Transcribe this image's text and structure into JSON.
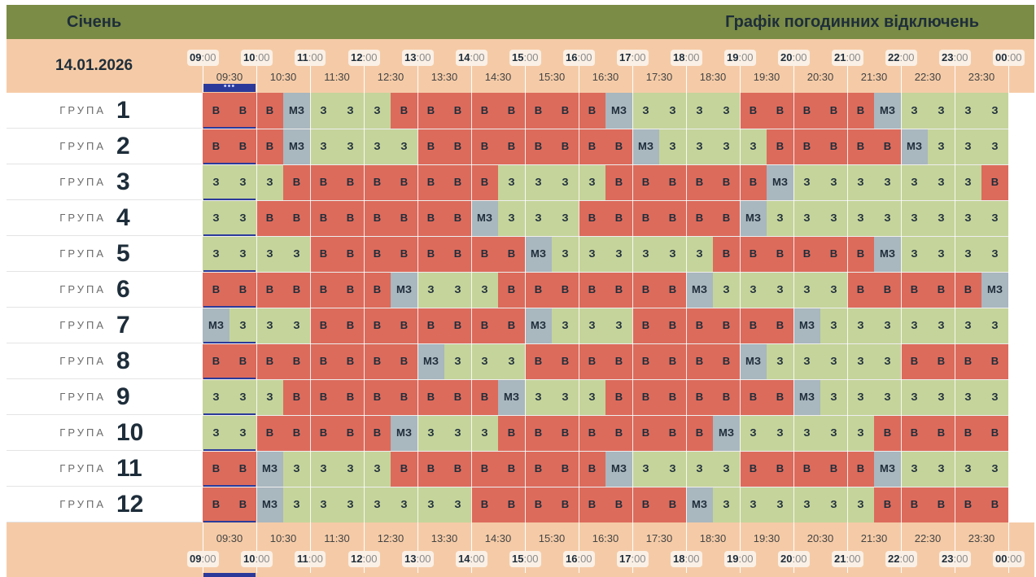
{
  "header": {
    "month": "Січень",
    "title": "Графік погодинних відключень",
    "date": "14.01.2026"
  },
  "hours": [
    {
      "h": "09",
      "m": ":00"
    },
    {
      "h": "10",
      "m": ":00"
    },
    {
      "h": "11",
      "m": ":00"
    },
    {
      "h": "12",
      "m": ":00"
    },
    {
      "h": "13",
      "m": ":00"
    },
    {
      "h": "14",
      "m": ":00"
    },
    {
      "h": "15",
      "m": ":00"
    },
    {
      "h": "16",
      "m": ":00"
    },
    {
      "h": "17",
      "m": ":00"
    },
    {
      "h": "18",
      "m": ":00"
    },
    {
      "h": "19",
      "m": ":00"
    },
    {
      "h": "20",
      "m": ":00"
    },
    {
      "h": "21",
      "m": ":00"
    },
    {
      "h": "22",
      "m": ":00"
    },
    {
      "h": "23",
      "m": ":00"
    },
    {
      "h": "00",
      "m": ":00"
    }
  ],
  "half_hours": [
    "09:30",
    "10:30",
    "11:30",
    "12:30",
    "13:30",
    "14:30",
    "15:30",
    "16:30",
    "17:30",
    "18:30",
    "19:30",
    "20:30",
    "21:30",
    "22:30",
    "23:30"
  ],
  "now_marker": {
    "dots": "•••"
  },
  "groups": [
    {
      "word": "ГРУПА",
      "num": "1",
      "cells": [
        "В",
        "В",
        "В",
        "МЗ",
        "З",
        "З",
        "З",
        "В",
        "В",
        "В",
        "В",
        "В",
        "В",
        "В",
        "В",
        "МЗ",
        "З",
        "З",
        "З",
        "З",
        "В",
        "В",
        "В",
        "В",
        "В",
        "МЗ",
        "З",
        "З",
        "З",
        "З"
      ]
    },
    {
      "word": "ГРУПА",
      "num": "2",
      "cells": [
        "В",
        "В",
        "В",
        "МЗ",
        "З",
        "З",
        "З",
        "З",
        "В",
        "В",
        "В",
        "В",
        "В",
        "В",
        "В",
        "В",
        "МЗ",
        "З",
        "З",
        "З",
        "З",
        "В",
        "В",
        "В",
        "В",
        "В",
        "МЗ",
        "З",
        "З",
        "З"
      ]
    },
    {
      "word": "ГРУПА",
      "num": "3",
      "cells": [
        "З",
        "З",
        "З",
        "В",
        "В",
        "В",
        "В",
        "В",
        "В",
        "В",
        "В",
        "З",
        "З",
        "З",
        "З",
        "В",
        "В",
        "В",
        "В",
        "В",
        "В",
        "МЗ",
        "З",
        "З",
        "З",
        "З",
        "З",
        "З",
        "З",
        "В"
      ]
    },
    {
      "word": "ГРУПА",
      "num": "4",
      "cells": [
        "З",
        "З",
        "В",
        "В",
        "В",
        "В",
        "В",
        "В",
        "В",
        "В",
        "МЗ",
        "З",
        "З",
        "З",
        "В",
        "В",
        "В",
        "В",
        "В",
        "В",
        "МЗ",
        "З",
        "З",
        "З",
        "З",
        "З",
        "З",
        "З",
        "З",
        "З"
      ]
    },
    {
      "word": "ГРУПА",
      "num": "5",
      "cells": [
        "З",
        "З",
        "З",
        "З",
        "В",
        "В",
        "В",
        "В",
        "В",
        "В",
        "В",
        "В",
        "МЗ",
        "З",
        "З",
        "З",
        "З",
        "З",
        "З",
        "В",
        "В",
        "В",
        "В",
        "В",
        "В",
        "МЗ",
        "З",
        "З",
        "З",
        "З"
      ]
    },
    {
      "word": "ГРУПА",
      "num": "6",
      "cells": [
        "В",
        "В",
        "В",
        "В",
        "В",
        "В",
        "В",
        "МЗ",
        "З",
        "З",
        "З",
        "В",
        "В",
        "В",
        "В",
        "В",
        "В",
        "В",
        "МЗ",
        "З",
        "З",
        "З",
        "З",
        "З",
        "В",
        "В",
        "В",
        "В",
        "В",
        "МЗ"
      ]
    },
    {
      "word": "ГРУПА",
      "num": "7",
      "cells": [
        "МЗ",
        "З",
        "З",
        "З",
        "В",
        "В",
        "В",
        "В",
        "В",
        "В",
        "В",
        "В",
        "МЗ",
        "З",
        "З",
        "З",
        "В",
        "В",
        "В",
        "В",
        "В",
        "В",
        "МЗ",
        "З",
        "З",
        "З",
        "З",
        "З",
        "З",
        "З"
      ]
    },
    {
      "word": "ГРУПА",
      "num": "8",
      "cells": [
        "В",
        "В",
        "В",
        "В",
        "В",
        "В",
        "В",
        "В",
        "МЗ",
        "З",
        "З",
        "З",
        "В",
        "В",
        "В",
        "В",
        "В",
        "В",
        "В",
        "В",
        "МЗ",
        "З",
        "З",
        "З",
        "З",
        "З",
        "В",
        "В",
        "В",
        "В"
      ]
    },
    {
      "word": "ГРУПА",
      "num": "9",
      "cells": [
        "З",
        "З",
        "З",
        "В",
        "В",
        "В",
        "В",
        "В",
        "В",
        "В",
        "В",
        "МЗ",
        "З",
        "З",
        "З",
        "В",
        "В",
        "В",
        "В",
        "В",
        "В",
        "В",
        "МЗ",
        "З",
        "З",
        "З",
        "З",
        "З",
        "З",
        "З"
      ]
    },
    {
      "word": "ГРУПА",
      "num": "10",
      "cells": [
        "З",
        "З",
        "В",
        "В",
        "В",
        "В",
        "В",
        "МЗ",
        "З",
        "З",
        "З",
        "В",
        "В",
        "В",
        "В",
        "В",
        "В",
        "В",
        "В",
        "МЗ",
        "З",
        "З",
        "З",
        "З",
        "З",
        "В",
        "В",
        "В",
        "В",
        "В"
      ]
    },
    {
      "word": "ГРУПА",
      "num": "11",
      "cells": [
        "В",
        "В",
        "МЗ",
        "З",
        "З",
        "З",
        "З",
        "В",
        "В",
        "В",
        "В",
        "В",
        "В",
        "В",
        "В",
        "МЗ",
        "З",
        "З",
        "З",
        "З",
        "В",
        "В",
        "В",
        "В",
        "В",
        "МЗ",
        "З",
        "З",
        "З",
        "З"
      ]
    },
    {
      "word": "ГРУПА",
      "num": "12",
      "cells": [
        "В",
        "В",
        "МЗ",
        "З",
        "З",
        "З",
        "З",
        "З",
        "З",
        "З",
        "В",
        "В",
        "В",
        "В",
        "В",
        "В",
        "В",
        "В",
        "МЗ",
        "З",
        "З",
        "З",
        "З",
        "З",
        "З",
        "В",
        "В",
        "В",
        "В",
        "В"
      ]
    }
  ]
}
